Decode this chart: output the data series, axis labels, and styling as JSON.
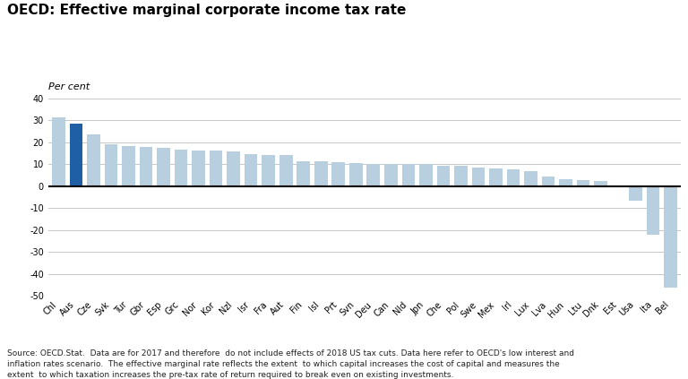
{
  "title": "OECD: Effective marginal corporate income tax rate",
  "ylabel": "Per cent",
  "categories": [
    "Chl",
    "Aus",
    "Cze",
    "Svk",
    "Tur",
    "Gbr",
    "Esp",
    "Grc",
    "Nor",
    "Kor",
    "Nzl",
    "Isr",
    "Fra",
    "Aut",
    "Fin",
    "Isl",
    "Prt",
    "Svn",
    "Deu",
    "Can",
    "Nld",
    "Jpn",
    "Che",
    "Pol",
    "Swe",
    "Mex",
    "Irl",
    "Lux",
    "Lva",
    "Hun",
    "Ltu",
    "Dnk",
    "Est",
    "Usa",
    "Ita",
    "Bel"
  ],
  "values": [
    31.5,
    28.5,
    23.5,
    19.0,
    18.5,
    17.8,
    17.3,
    16.5,
    16.2,
    16.2,
    16.0,
    14.5,
    14.2,
    14.2,
    11.5,
    11.3,
    11.0,
    10.5,
    10.2,
    10.2,
    10.0,
    10.0,
    9.5,
    9.2,
    8.5,
    8.0,
    7.8,
    7.0,
    4.5,
    3.2,
    2.8,
    2.5,
    0.2,
    -6.5,
    -22.0,
    -46.5
  ],
  "bar_color_default": "#b8cfe0",
  "bar_color_highlight": "#1f5fa6",
  "highlight_index": 1,
  "ylim": [
    -50,
    40
  ],
  "yticks": [
    -50,
    -40,
    -30,
    -20,
    -10,
    0,
    10,
    20,
    30,
    40
  ],
  "source_text": "Source: OECD.Stat.  Data are for 2017 and therefore  do not include effects of 2018 US tax cuts. Data here refer to OECD's low interest and\ninflation rates scenario.  The effective marginal rate reflects the extent  to which capital increases the cost of capital and measures the\nextent  to which taxation increases the pre-tax rate of return required to break even on existing investments.",
  "background_color": "#ffffff",
  "grid_color": "#b0b0b0",
  "title_fontsize": 11,
  "ylabel_fontsize": 8,
  "tick_fontsize": 7,
  "source_fontsize": 6.5
}
